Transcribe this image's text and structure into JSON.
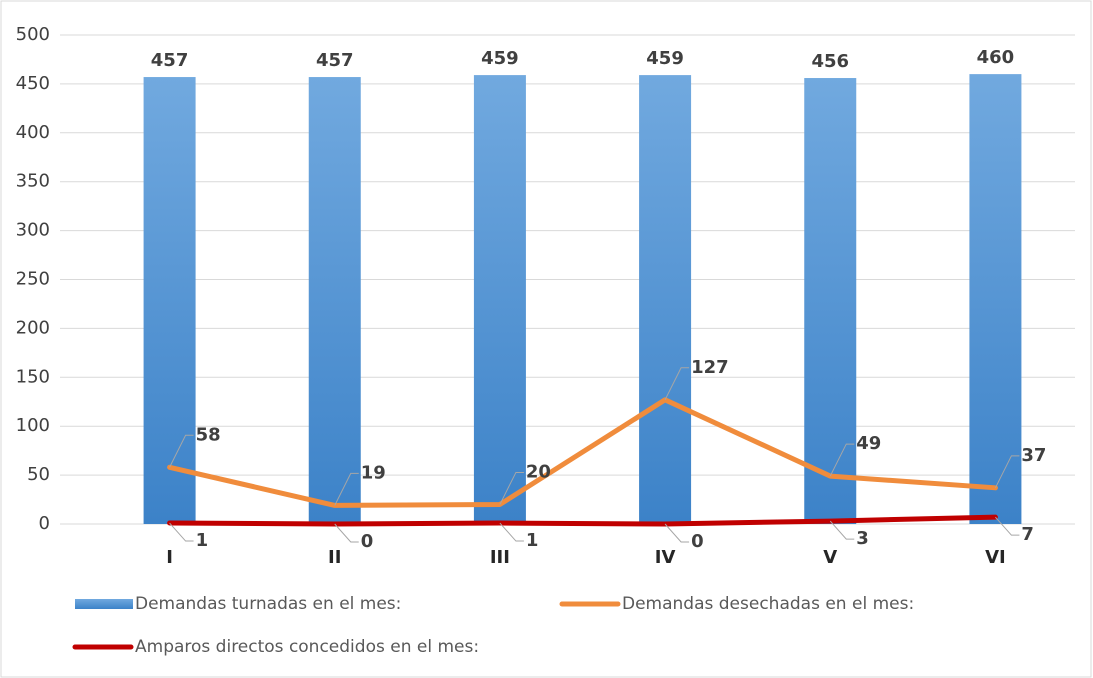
{
  "chart_data": {
    "type": "bar",
    "categories": [
      "I",
      "II",
      "III",
      "IV",
      "V",
      "VI"
    ],
    "series": [
      {
        "name": "Demandas turnadas en el mes:",
        "type": "bar",
        "color": "#5b9bd5",
        "values": [
          457,
          457,
          459,
          459,
          456,
          460
        ]
      },
      {
        "name": "Demandas desechadas en el mes:",
        "type": "line",
        "color": "#f08c3c",
        "values": [
          58,
          19,
          20,
          127,
          49,
          37
        ]
      },
      {
        "name": "Amparos directos concedidos en el mes:",
        "type": "line",
        "color": "#c00000",
        "values": [
          1,
          0,
          1,
          0,
          3,
          7
        ]
      }
    ],
    "ylim": [
      0,
      500
    ],
    "yticks": [
      0,
      50,
      100,
      150,
      200,
      250,
      300,
      350,
      400,
      450,
      500
    ],
    "grid": true,
    "legend": "bottom"
  }
}
